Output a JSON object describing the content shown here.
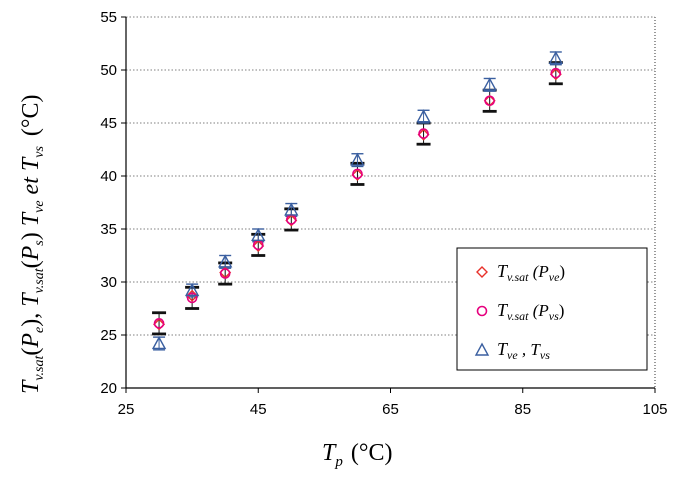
{
  "chart_data": {
    "type": "scatter",
    "xlabel": {
      "main": "T",
      "sub": "p",
      "unit": "(°C)"
    },
    "ylabel": "T_v.sat(P_e), T_v.sat(P_s) T_ve et T_vs (°C)",
    "xlim": [
      25,
      105
    ],
    "ylim": [
      20,
      55
    ],
    "x_ticks": [
      25,
      45,
      65,
      85,
      105
    ],
    "y_ticks": [
      20,
      25,
      30,
      35,
      40,
      45,
      50,
      55
    ],
    "grid": "horizontal-dotted",
    "legend_position": "bottom-right",
    "series": [
      {
        "name": "T_v.sat (P_ve)",
        "marker": "diamond",
        "color": "#e8312a",
        "x": [
          30,
          35,
          40,
          45,
          50,
          60,
          70,
          80,
          90
        ],
        "y": [
          26.0,
          28.7,
          30.9,
          33.4,
          35.8,
          40.1,
          43.9,
          47.1,
          49.6
        ]
      },
      {
        "name": "T_v.sat (P_vs)",
        "marker": "circle",
        "color": "#e6007e",
        "x": [
          30,
          35,
          40,
          45,
          50,
          60,
          70,
          80,
          90
        ],
        "y": [
          26.1,
          28.5,
          30.8,
          33.5,
          35.9,
          40.2,
          44.0,
          47.1,
          49.7
        ],
        "error": 1.0
      },
      {
        "name": "T_ve , T_vs",
        "marker": "triangle",
        "color": "#3a5fa0",
        "x": [
          30,
          35,
          40,
          45,
          50,
          60,
          70,
          80,
          90
        ],
        "y": [
          24.2,
          29.2,
          31.9,
          34.4,
          36.8,
          41.5,
          45.6,
          48.6,
          51.1
        ],
        "error": 0.6
      }
    ],
    "legend": [
      {
        "label": "T",
        "sub": "v.sat",
        "mid": " (P",
        "sub2": "ve",
        "end": ")"
      },
      {
        "label": "T",
        "sub": "v.sat",
        "mid": " (P",
        "sub2": "vs",
        "end": ")"
      },
      {
        "label": "T",
        "sub": "ve",
        "mid": " , T",
        "sub2": "vs",
        "end": ""
      }
    ]
  }
}
